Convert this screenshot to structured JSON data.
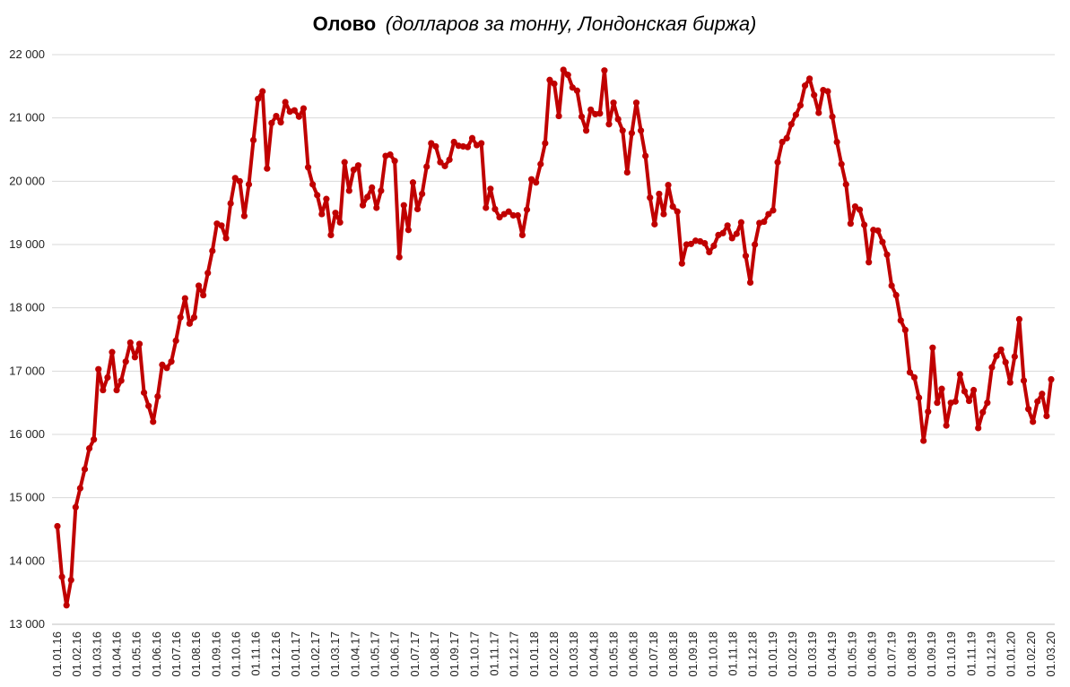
{
  "chart_data": {
    "type": "line",
    "title_bold": "Олово",
    "title_italic": "(долларов за тонну, Лондонская биржа)",
    "ylim": [
      13000,
      22000
    ],
    "yticks": [
      {
        "value": 13000,
        "label": "13 000"
      },
      {
        "value": 14000,
        "label": "14 000"
      },
      {
        "value": 15000,
        "label": "15 000"
      },
      {
        "value": 16000,
        "label": "16 000"
      },
      {
        "value": 17000,
        "label": "17 000"
      },
      {
        "value": 18000,
        "label": "18 000"
      },
      {
        "value": 19000,
        "label": "19 000"
      },
      {
        "value": 20000,
        "label": "20 000"
      },
      {
        "value": 21000,
        "label": "21 000"
      },
      {
        "value": 22000,
        "label": "22 000"
      }
    ],
    "xticks": [
      "01.01.16",
      "01.02.16",
      "01.03.16",
      "01.04.16",
      "01.05.16",
      "01.06.16",
      "01.07.16",
      "01.08.16",
      "01.09.16",
      "01.10.16",
      "01.11.16",
      "01.12.16",
      "01.01.17",
      "01.02.17",
      "01.03.17",
      "01.04.17",
      "01.05.17",
      "01.06.17",
      "01.07.17",
      "01.08.17",
      "01.09.17",
      "01.10.17",
      "01.11.17",
      "01.12.17",
      "01.01.18",
      "01.02.18",
      "01.03.18",
      "01.04.18",
      "01.05.18",
      "01.06.18",
      "01.07.18",
      "01.08.18",
      "01.09.18",
      "01.10.18",
      "01.11.18",
      "01.12.18",
      "01.01.19",
      "01.02.19",
      "01.03.19",
      "01.04.19",
      "01.05.19",
      "01.06.19",
      "01.07.19",
      "01.08.19",
      "01.09.19",
      "01.10.19",
      "01.11.19",
      "01.12.19",
      "01.01.20",
      "01.02.20",
      "01.03.20"
    ],
    "grid": "horizontal",
    "color": "#c00000",
    "series": [
      {
        "values": [
          14550,
          13750,
          13300,
          13700,
          14850,
          15150,
          15450,
          15780,
          15920,
          17030,
          16700,
          16900,
          17300,
          16700,
          16850,
          17150,
          17450,
          17220,
          17430,
          16660,
          16450,
          16200,
          16600,
          17100,
          17050,
          17150,
          17480,
          17850,
          18150,
          17750,
          17850,
          18350,
          18200,
          18550,
          18900,
          19330,
          19300,
          19100,
          19650,
          20050,
          20000,
          19450,
          19950,
          20650,
          21300,
          21420,
          20200,
          20920,
          21030,
          20930,
          21250,
          21100,
          21120,
          21020,
          21150,
          20220,
          19950,
          19780,
          19480,
          19720,
          19150,
          19500,
          19350,
          20300,
          19850,
          20180,
          20250,
          19620,
          19750,
          19900,
          19580,
          19850,
          20400,
          20420,
          20320,
          18800,
          19620,
          19230,
          19980,
          19560,
          19800,
          20230,
          20600,
          20550,
          20300,
          20240,
          20340,
          20620,
          20560,
          20550,
          20540,
          20680,
          20570,
          20600,
          19580,
          19880,
          19560,
          19430,
          19480,
          19520,
          19460,
          19460,
          19150,
          19550,
          20030,
          19980,
          20270,
          20600,
          21600,
          21540,
          21030,
          21760,
          21680,
          21480,
          21430,
          21020,
          20800,
          21130,
          21060,
          21070,
          21750,
          20900,
          21240,
          20980,
          20800,
          20140,
          20760,
          21240,
          20800,
          20400,
          19740,
          19320,
          19800,
          19480,
          19940,
          19600,
          19520,
          18700,
          19000,
          19010,
          19060,
          19050,
          19020,
          18880,
          18980,
          19150,
          19180,
          19300,
          19100,
          19170,
          19350,
          18820,
          18400,
          19000,
          19340,
          19360,
          19480,
          19540,
          20300,
          20620,
          20680,
          20900,
          21050,
          21200,
          21510,
          21620,
          21360,
          21080,
          21440,
          21420,
          21020,
          20620,
          20270,
          19950,
          19330,
          19600,
          19550,
          19310,
          18720,
          19230,
          19220,
          19040,
          18840,
          18350,
          18200,
          17800,
          17650,
          16980,
          16900,
          16580,
          15900,
          16360,
          17370,
          16500,
          16720,
          16140,
          16500,
          16520,
          16950,
          16680,
          16530,
          16700,
          16100,
          16350,
          16500,
          17060,
          17240,
          17340,
          17140,
          16820,
          17230,
          17820,
          16850,
          16400,
          16200,
          16520,
          16640,
          16290,
          16870
        ]
      }
    ]
  }
}
